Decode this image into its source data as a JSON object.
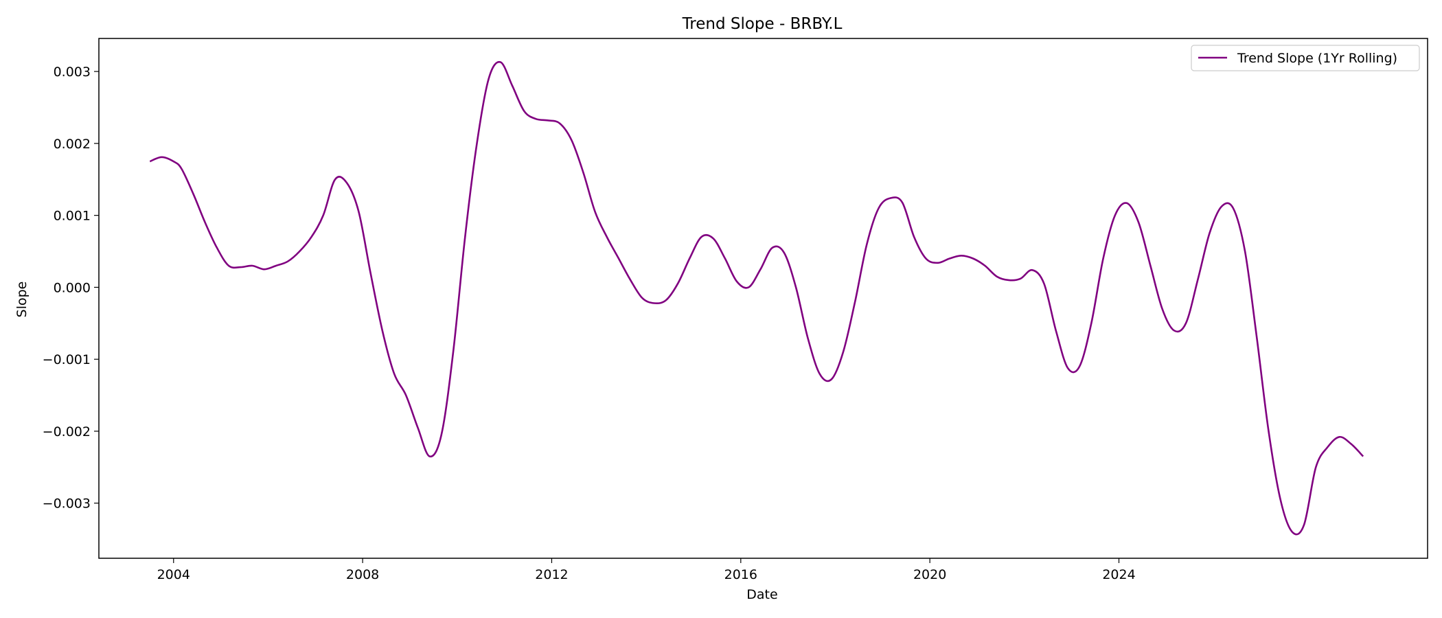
{
  "chart_data": {
    "type": "line",
    "title": "Trend Slope - BRBY.L",
    "xlabel": "Date",
    "ylabel": "Slope",
    "x_ticks": [
      "2004",
      "2008",
      "2012",
      "2016",
      "2020",
      "2024"
    ],
    "y_ticks": [
      "0.003",
      "0.002",
      "0.001",
      "0.000",
      "−0.001",
      "−0.002",
      "−0.003"
    ],
    "grid": false,
    "legend_position": "top-right",
    "series": [
      {
        "name": "Trend Slope (1Yr Rolling)",
        "color": "#800080",
        "points": [
          [
            "2003-07",
            0.00175
          ],
          [
            "2003-10",
            0.00181
          ],
          [
            "2004-01",
            0.00175
          ],
          [
            "2004-03",
            0.00165
          ],
          [
            "2004-06",
            0.0013
          ],
          [
            "2004-09",
            0.0009
          ],
          [
            "2004-12",
            0.00055
          ],
          [
            "2005-03",
            0.0003
          ],
          [
            "2005-06",
            0.00028
          ],
          [
            "2005-09",
            0.0003
          ],
          [
            "2005-12",
            0.00025
          ],
          [
            "2006-03",
            0.0003
          ],
          [
            "2006-06",
            0.00036
          ],
          [
            "2006-09",
            0.0005
          ],
          [
            "2006-12",
            0.0007
          ],
          [
            "2007-03",
            0.001
          ],
          [
            "2007-06",
            0.0015
          ],
          [
            "2007-09",
            0.00145
          ],
          [
            "2007-12",
            0.00105
          ],
          [
            "2008-03",
            0.0002
          ],
          [
            "2008-06",
            -0.0006
          ],
          [
            "2008-09",
            -0.0012
          ],
          [
            "2008-12",
            -0.0015
          ],
          [
            "2009-03",
            -0.00195
          ],
          [
            "2009-06",
            -0.00235
          ],
          [
            "2009-09",
            -0.00205
          ],
          [
            "2009-12",
            -0.0009
          ],
          [
            "2010-03",
            0.0007
          ],
          [
            "2010-06",
            0.002
          ],
          [
            "2010-09",
            0.0029
          ],
          [
            "2010-12",
            0.00313
          ],
          [
            "2011-03",
            0.0028
          ],
          [
            "2011-06",
            0.00245
          ],
          [
            "2011-09",
            0.00234
          ],
          [
            "2011-12",
            0.00232
          ],
          [
            "2012-03",
            0.00228
          ],
          [
            "2012-06",
            0.00205
          ],
          [
            "2012-09",
            0.0016
          ],
          [
            "2012-12",
            0.00105
          ],
          [
            "2013-03",
            0.0007
          ],
          [
            "2013-06",
            0.0004
          ],
          [
            "2013-09",
            0.0001
          ],
          [
            "2013-12",
            -0.00015
          ],
          [
            "2014-03",
            -0.00022
          ],
          [
            "2014-06",
            -0.00018
          ],
          [
            "2014-09",
            5e-05
          ],
          [
            "2014-12",
            0.0004
          ],
          [
            "2015-03",
            0.0007
          ],
          [
            "2015-06",
            0.00068
          ],
          [
            "2015-09",
            0.0004
          ],
          [
            "2015-12",
            8e-05
          ],
          [
            "2016-03",
            0.0
          ],
          [
            "2016-06",
            0.00025
          ],
          [
            "2016-09",
            0.00055
          ],
          [
            "2016-12",
            0.00048
          ],
          [
            "2017-03",
            0.0
          ],
          [
            "2017-06",
            -0.0007
          ],
          [
            "2017-09",
            -0.0012
          ],
          [
            "2017-12",
            -0.00128
          ],
          [
            "2018-03",
            -0.0009
          ],
          [
            "2018-06",
            -0.0002
          ],
          [
            "2018-09",
            0.0006
          ],
          [
            "2018-12",
            0.0011
          ],
          [
            "2019-03",
            0.00124
          ],
          [
            "2019-06",
            0.00118
          ],
          [
            "2019-09",
            0.0007
          ],
          [
            "2019-12",
            0.0004
          ],
          [
            "2020-03",
            0.00034
          ],
          [
            "2020-06",
            0.0004
          ],
          [
            "2020-09",
            0.00044
          ],
          [
            "2020-12",
            0.0004
          ],
          [
            "2021-03",
            0.0003
          ],
          [
            "2021-06",
            0.00015
          ],
          [
            "2021-09",
            0.0001
          ],
          [
            "2021-12",
            0.00012
          ],
          [
            "2022-03",
            0.00024
          ],
          [
            "2022-06",
            5e-05
          ],
          [
            "2022-09",
            -0.0006
          ],
          [
            "2022-12",
            -0.00112
          ],
          [
            "2023-03",
            -0.0011
          ],
          [
            "2023-06",
            -0.0005
          ],
          [
            "2023-09",
            0.0004
          ],
          [
            "2023-12",
            0.001
          ],
          [
            "2024-03",
            0.00117
          ],
          [
            "2024-06",
            0.0009
          ],
          [
            "2024-09",
            0.0003
          ],
          [
            "2024-12",
            -0.0003
          ],
          [
            "2025-03",
            -0.0006
          ],
          [
            "2025-06",
            -0.0005
          ],
          [
            "2025-09",
            0.0001
          ],
          [
            "2025-12",
            0.00075
          ],
          [
            "2026-03",
            0.00112
          ],
          [
            "2026-06",
            0.0011
          ],
          [
            "2026-09",
            0.0005
          ],
          [
            "2026-12",
            -0.0007
          ],
          [
            "2027-03",
            -0.002
          ],
          [
            "2027-06",
            -0.00295
          ],
          [
            "2027-09",
            -0.0034
          ],
          [
            "2027-12",
            -0.0033
          ],
          [
            "2028-03",
            -0.0025
          ],
          [
            "2028-06",
            -0.00222
          ],
          [
            "2028-09",
            -0.00208
          ],
          [
            "2028-12",
            -0.00218
          ],
          [
            "2029-03",
            -0.00235
          ]
        ]
      }
    ]
  }
}
